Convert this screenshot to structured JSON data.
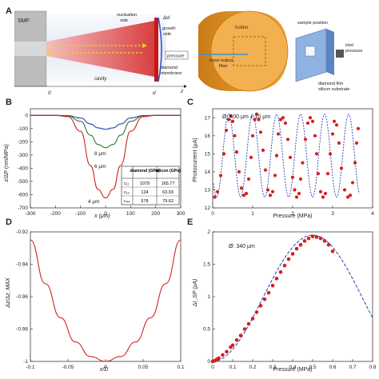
{
  "panels": {
    "a": {
      "letter": "A",
      "smf": "SMF",
      "nucleation": "nucleation",
      "side": "side",
      "growth": "growth",
      "side2": "side",
      "delta_d": "Δd",
      "pressure": "pressure",
      "diamond": "diamond",
      "membrane": "membrane",
      "cavity": "cavity",
      "z": "z",
      "origin": "0",
      "d0": "d",
      "holder": "holder",
      "sample_position": "sample position",
      "input_output": "input-output",
      "fiber": "fiber",
      "inlet": "inlet",
      "inlet_pressure": "pressure",
      "diamond_film": "diamond film",
      "silicon_substrate": "silicon substrate"
    },
    "b": {
      "letter": "B",
      "ylabel": "z/ΔP (nm/MPa)",
      "xlabel": "x (μm)",
      "curve_labels": [
        "8 μm",
        "6 μm",
        "4 μm"
      ],
      "table": {
        "headers": [
          "",
          "diamond (GPa)",
          "silicon (GPa)"
        ],
        "rows": [
          [
            "c₁₁",
            "1079",
            "165.77"
          ],
          [
            "c₁₂",
            "124",
            "63.93"
          ],
          [
            "c₄₄",
            "578",
            "79.62"
          ]
        ]
      }
    },
    "c": {
      "letter": "C",
      "ylabel": "Photocurrent (μA)",
      "xlabel": "Pressure (MPa)",
      "annotation": "Ø: 400 μm ± 10 μm"
    },
    "d": {
      "letter": "D",
      "ylabel": "Δz/Δz_MAX",
      "xlabel": "x/D"
    },
    "e": {
      "letter": "E",
      "ylabel": "ΔI_SP (μA)",
      "xlabel": "Pressure (MPa)",
      "annotation": "Ø: 340 μm"
    }
  },
  "colors": {
    "red": "#d42020",
    "blue": "#2a3fae",
    "green": "#2f7a2f",
    "beam": "#e8393a",
    "holder": "#e89a2c"
  },
  "chart_data": [
    {
      "panel": "B",
      "type": "line",
      "xlabel": "x (μm)",
      "ylabel": "z/ΔP (nm/MPa)",
      "xlim": [
        -300,
        300
      ],
      "ylim": [
        -700,
        50
      ],
      "xticks": [
        -300,
        -200,
        -100,
        0,
        100,
        200,
        300
      ],
      "yticks": [
        0,
        -100,
        -200,
        -300,
        -400,
        -500,
        -600,
        -700
      ],
      "series": [
        {
          "name": "8 μm",
          "color": "#2a3fae",
          "x": [
            -300,
            -200,
            -150,
            -100,
            -60,
            -30,
            0,
            30,
            60,
            100,
            150,
            200,
            300
          ],
          "y": [
            0,
            0,
            -2,
            -20,
            -65,
            -95,
            -105,
            -95,
            -65,
            -20,
            -2,
            0,
            0
          ]
        },
        {
          "name": "6 μm",
          "color": "#2f7a2f",
          "x": [
            -300,
            -200,
            -150,
            -100,
            -60,
            -30,
            0,
            30,
            60,
            100,
            150,
            200,
            300
          ],
          "y": [
            0,
            0,
            -4,
            -45,
            -150,
            -220,
            -245,
            -220,
            -150,
            -45,
            -4,
            0,
            0
          ]
        },
        {
          "name": "4 μm",
          "color": "#d42020",
          "x": [
            -300,
            -200,
            -150,
            -100,
            -60,
            -30,
            0,
            30,
            60,
            100,
            150,
            200,
            300
          ],
          "y": [
            0,
            0,
            -10,
            -120,
            -380,
            -560,
            -625,
            -560,
            -380,
            -120,
            -10,
            0,
            0
          ]
        }
      ]
    },
    {
      "panel": "C",
      "type": "scatter",
      "xlabel": "Pressure (MPa)",
      "ylabel": "Photocurrent (μA)",
      "xlim": [
        0,
        4
      ],
      "ylim": [
        12,
        17.5
      ],
      "xticks": [
        0,
        1,
        2,
        3,
        4
      ],
      "yticks": [
        12,
        13,
        14,
        15,
        16,
        17
      ],
      "fit_model": {
        "offset": 14.9,
        "amplitude": 2.3,
        "period": 0.6,
        "phase_x": 0.4
      },
      "points": {
        "x": [
          0.05,
          0.12,
          0.2,
          0.28,
          0.34,
          0.4,
          0.45,
          0.5,
          0.55,
          0.6,
          0.66,
          0.72,
          0.78,
          0.84,
          0.9,
          0.96,
          1.0,
          1.05,
          1.1,
          1.15,
          1.2,
          1.26,
          1.32,
          1.38,
          1.44,
          1.5,
          1.56,
          1.6,
          1.64,
          1.7,
          1.76,
          1.82,
          1.88,
          1.94,
          2.0,
          2.05,
          2.1,
          2.16,
          2.2,
          2.25,
          2.32,
          2.38,
          2.44,
          2.5,
          2.56,
          2.6,
          2.64,
          2.7,
          2.76,
          2.82,
          2.88,
          2.94,
          3.0,
          3.04,
          3.1,
          3.16,
          3.22,
          3.3,
          3.38,
          3.44,
          3.5,
          3.56,
          3.6,
          3.64
        ],
        "y": [
          12.6,
          12.9,
          13.8,
          15.0,
          16.3,
          16.9,
          17.1,
          16.8,
          16.0,
          15.1,
          14.0,
          13.1,
          12.7,
          12.8,
          13.6,
          14.8,
          16.0,
          16.9,
          17.2,
          16.9,
          16.2,
          15.2,
          14.1,
          13.0,
          12.7,
          12.9,
          13.8,
          14.9,
          16.1,
          16.9,
          17.0,
          16.7,
          15.8,
          14.8,
          13.7,
          13.0,
          12.6,
          12.8,
          13.6,
          14.5,
          15.8,
          16.7,
          17.0,
          16.8,
          16.0,
          15.0,
          13.9,
          12.9,
          12.6,
          12.8,
          13.9,
          15.0,
          16.1,
          16.8,
          16.6,
          15.6,
          14.2,
          13.0,
          12.6,
          12.7,
          13.4,
          14.5,
          15.6,
          16.4
        ]
      }
    },
    {
      "panel": "D",
      "type": "line",
      "xlabel": "x/D",
      "ylabel": "Δz/Δz_MAX",
      "xlim": [
        -0.1,
        0.1
      ],
      "ylim": [
        -1.0,
        -0.92
      ],
      "xticks": [
        -0.1,
        -0.05,
        0,
        0.05,
        0.1
      ],
      "yticks": [
        -0.92,
        -0.94,
        -0.96,
        -0.98,
        -1
      ],
      "series": [
        {
          "color": "#d42020",
          "x": [
            -0.1,
            -0.08,
            -0.06,
            -0.04,
            -0.02,
            0,
            0.02,
            0.04,
            0.06,
            0.08,
            0.1
          ],
          "y": [
            -0.925,
            -0.952,
            -0.973,
            -0.988,
            -0.997,
            -1.0,
            -0.997,
            -0.988,
            -0.973,
            -0.952,
            -0.925
          ]
        }
      ]
    },
    {
      "panel": "E",
      "type": "scatter",
      "xlabel": "Pressure (MPa)",
      "ylabel": "ΔI_SP (μA)",
      "xlim": [
        0,
        0.8
      ],
      "ylim": [
        0,
        2.0
      ],
      "xticks": [
        0,
        0.1,
        0.2,
        0.3,
        0.4,
        0.5,
        0.6,
        0.7,
        0.8
      ],
      "yticks": [
        0,
        0.5,
        1.0,
        1.5,
        2.0
      ],
      "fit_model": {
        "peak_x": 0.5,
        "peak_y": 1.95
      },
      "points": {
        "x": [
          0.0,
          0.01,
          0.02,
          0.03,
          0.05,
          0.07,
          0.09,
          0.1,
          0.12,
          0.14,
          0.16,
          0.18,
          0.2,
          0.22,
          0.24,
          0.26,
          0.28,
          0.3,
          0.32,
          0.34,
          0.36,
          0.38,
          0.4,
          0.42,
          0.44,
          0.46,
          0.48,
          0.5,
          0.52,
          0.54,
          0.56,
          0.58,
          0.6
        ],
        "y": [
          0.0,
          0.01,
          0.03,
          0.05,
          0.1,
          0.15,
          0.22,
          0.25,
          0.33,
          0.4,
          0.5,
          0.58,
          0.66,
          0.76,
          0.86,
          0.96,
          1.06,
          1.17,
          1.28,
          1.38,
          1.48,
          1.58,
          1.66,
          1.74,
          1.8,
          1.86,
          1.9,
          1.93,
          1.92,
          1.9,
          1.86,
          1.8,
          1.7
        ]
      }
    }
  ]
}
